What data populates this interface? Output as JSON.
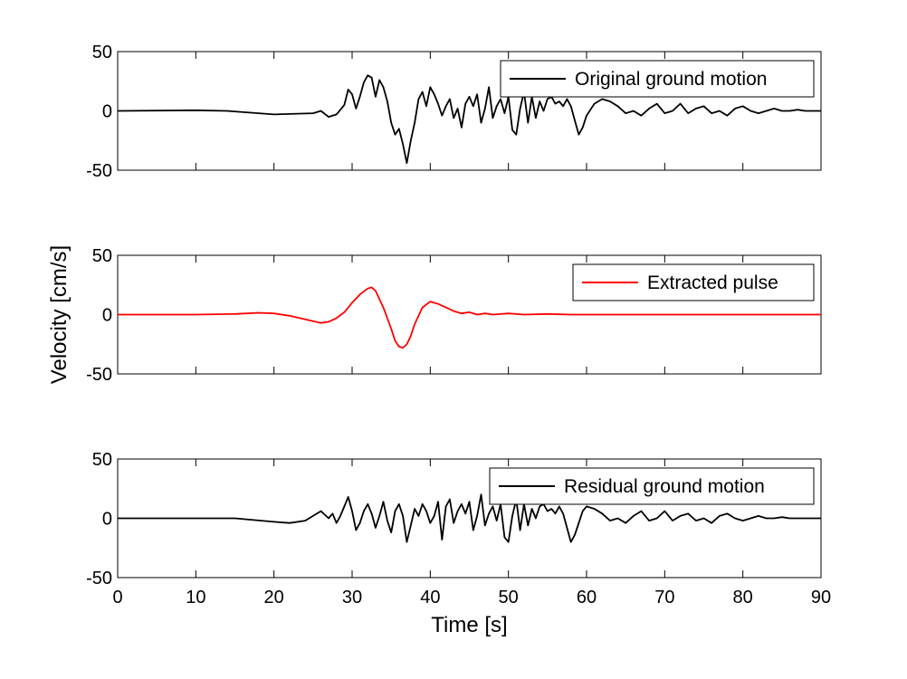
{
  "chart_data": [
    {
      "type": "line",
      "title": "",
      "xlabel": "",
      "ylabel": "",
      "xlim": [
        0,
        90
      ],
      "ylim": [
        -50,
        50
      ],
      "yticks": [
        "50",
        "0",
        "-50"
      ],
      "legend_position": "top-right",
      "grid": false,
      "series": [
        {
          "name": "Original ground motion",
          "color": "#000000",
          "x": [
            0,
            10,
            14,
            20,
            25,
            26,
            27,
            28,
            29,
            29.5,
            30,
            30.5,
            31,
            31.5,
            32,
            32.5,
            33,
            33.5,
            34,
            34.5,
            35,
            35.5,
            36,
            36.5,
            37,
            37.5,
            38,
            38.5,
            39,
            39.5,
            40,
            40.5,
            41,
            41.5,
            42,
            42.5,
            43,
            43.5,
            44,
            44.5,
            45,
            45.5,
            46,
            46.5,
            47,
            47.5,
            48,
            48.5,
            49,
            49.5,
            50,
            50.5,
            51,
            51.5,
            52,
            52.5,
            53,
            53.5,
            54,
            54.5,
            55,
            55.5,
            56,
            56.5,
            57,
            57.5,
            58,
            58.5,
            59,
            59.5,
            60,
            61,
            62,
            63,
            64,
            65,
            66,
            67,
            68,
            69,
            70,
            71,
            72,
            73,
            74,
            75,
            76,
            77,
            78,
            79,
            80,
            81,
            82,
            83,
            84,
            85,
            86,
            87,
            88,
            90
          ],
          "values": [
            0,
            0.5,
            0,
            -3,
            -2,
            0,
            -5,
            -3,
            5,
            18,
            14,
            2,
            12,
            24,
            30,
            28,
            12,
            26,
            20,
            8,
            -10,
            -20,
            -15,
            -28,
            -44,
            -25,
            -10,
            10,
            16,
            4,
            20,
            14,
            6,
            -4,
            4,
            10,
            -6,
            2,
            -14,
            6,
            12,
            4,
            14,
            -10,
            2,
            20,
            -6,
            4,
            10,
            -2,
            12,
            -16,
            -20,
            2,
            16,
            -10,
            12,
            -6,
            8,
            0,
            10,
            12,
            6,
            8,
            4,
            10,
            4,
            -8,
            -20,
            -14,
            -4,
            6,
            10,
            8,
            4,
            -2,
            0,
            -4,
            2,
            6,
            -2,
            0,
            6,
            -2,
            2,
            4,
            -2,
            0,
            -4,
            2,
            4,
            0,
            -2,
            0,
            2,
            0,
            0,
            1,
            0,
            0
          ]
        }
      ]
    },
    {
      "type": "line",
      "title": "",
      "xlabel": "",
      "ylabel": "Velocity [cm/s]",
      "xlim": [
        0,
        90
      ],
      "ylim": [
        -50,
        50
      ],
      "yticks": [
        "50",
        "0",
        "-50"
      ],
      "legend_position": "top-right",
      "grid": false,
      "series": [
        {
          "name": "Extracted pulse",
          "color": "#ff0000",
          "x": [
            0,
            10,
            15,
            18,
            20,
            22,
            24,
            26,
            27,
            28,
            29,
            30,
            31,
            32,
            32.5,
            33,
            34,
            35,
            35.5,
            36,
            36.5,
            37,
            37.5,
            38,
            39,
            40,
            41,
            42,
            43,
            44,
            45,
            46,
            47,
            48,
            50,
            52,
            55,
            58,
            90
          ],
          "values": [
            0,
            0,
            0.5,
            1.5,
            1,
            -1,
            -4,
            -7,
            -6,
            -3,
            2,
            10,
            17,
            22,
            23,
            20,
            6,
            -12,
            -22,
            -27,
            -28,
            -25,
            -18,
            -8,
            6,
            11,
            9,
            6,
            3,
            1,
            2,
            0,
            1,
            0,
            1,
            0,
            0.5,
            0,
            0
          ]
        }
      ]
    },
    {
      "type": "line",
      "title": "",
      "xlabel": "Time [s]",
      "ylabel": "",
      "xlim": [
        0,
        90
      ],
      "ylim": [
        -50,
        50
      ],
      "xticks": [
        "0",
        "10",
        "20",
        "30",
        "40",
        "50",
        "60",
        "70",
        "80",
        "90"
      ],
      "yticks": [
        "50",
        "0",
        "-50"
      ],
      "legend_position": "top-right",
      "grid": false,
      "series": [
        {
          "name": "Residual ground motion",
          "color": "#000000",
          "x": [
            0,
            10,
            15,
            20,
            22,
            24,
            25,
            26,
            27,
            27.5,
            28,
            28.5,
            29,
            29.5,
            30,
            30.5,
            31,
            31.5,
            32,
            32.5,
            33,
            33.5,
            34,
            34.5,
            35,
            35.5,
            36,
            36.5,
            37,
            37.5,
            38,
            38.5,
            39,
            39.5,
            40,
            40.5,
            41,
            41.5,
            42,
            42.5,
            43,
            43.5,
            44,
            44.5,
            45,
            45.5,
            46,
            46.5,
            47,
            47.5,
            48,
            48.5,
            49,
            49.5,
            50,
            50.5,
            51,
            51.5,
            52,
            52.5,
            53,
            53.5,
            54,
            54.5,
            55,
            55.5,
            56,
            56.5,
            57,
            57.5,
            58,
            58.5,
            59,
            59.5,
            60,
            61,
            62,
            63,
            64,
            65,
            66,
            67,
            68,
            69,
            70,
            71,
            72,
            73,
            74,
            75,
            76,
            77,
            78,
            79,
            80,
            81,
            82,
            83,
            84,
            85,
            86,
            87,
            88,
            90
          ],
          "values": [
            0,
            0,
            0,
            -3,
            -4,
            -2,
            2,
            6,
            0,
            4,
            -4,
            2,
            10,
            18,
            6,
            -10,
            -4,
            6,
            12,
            4,
            -8,
            2,
            14,
            -2,
            -12,
            6,
            12,
            2,
            -20,
            -6,
            8,
            2,
            12,
            6,
            -4,
            2,
            14,
            -18,
            10,
            16,
            -4,
            6,
            12,
            4,
            14,
            -10,
            2,
            20,
            -6,
            4,
            10,
            -2,
            12,
            -16,
            -20,
            2,
            16,
            -10,
            12,
            -6,
            8,
            0,
            10,
            12,
            6,
            8,
            4,
            10,
            4,
            -8,
            -20,
            -14,
            -4,
            6,
            10,
            8,
            4,
            -2,
            0,
            -4,
            2,
            6,
            -2,
            0,
            6,
            -2,
            2,
            4,
            -2,
            0,
            -4,
            2,
            4,
            0,
            -2,
            0,
            2,
            0,
            0,
            1,
            0,
            0,
            0,
            0
          ]
        }
      ]
    }
  ]
}
